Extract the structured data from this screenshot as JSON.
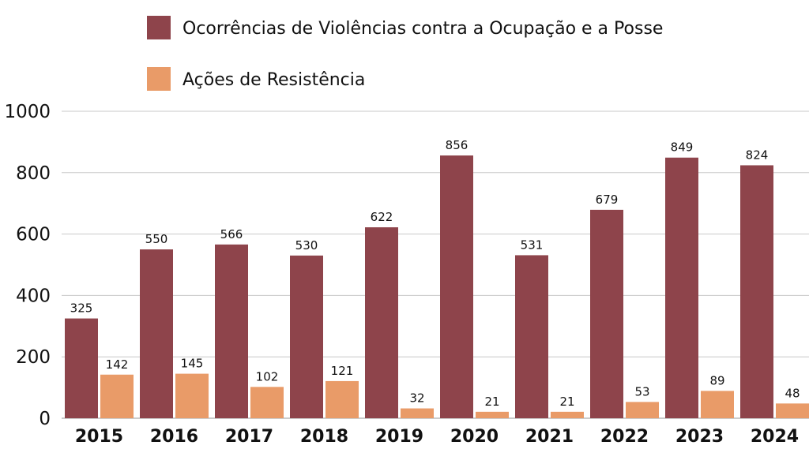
{
  "chart_data": {
    "type": "bar",
    "title": "",
    "xlabel": "",
    "ylabel": "",
    "ylim": [
      0,
      1000
    ],
    "yticks": [
      0,
      200,
      400,
      600,
      800,
      1000
    ],
    "grid": true,
    "legend_position": "top",
    "categories": [
      "2015",
      "2016",
      "2017",
      "2018",
      "2019",
      "2020",
      "2021",
      "2022",
      "2023",
      "2024"
    ],
    "series": [
      {
        "name": "Ocorrências de Violências contra a Ocupação e a Posse",
        "color": "#8e444b",
        "values": [
          325,
          550,
          566,
          530,
          622,
          856,
          531,
          679,
          849,
          824
        ]
      },
      {
        "name": "Ações de Resistência",
        "color": "#e99b68",
        "values": [
          142,
          145,
          102,
          121,
          32,
          21,
          21,
          53,
          89,
          48
        ]
      }
    ]
  }
}
